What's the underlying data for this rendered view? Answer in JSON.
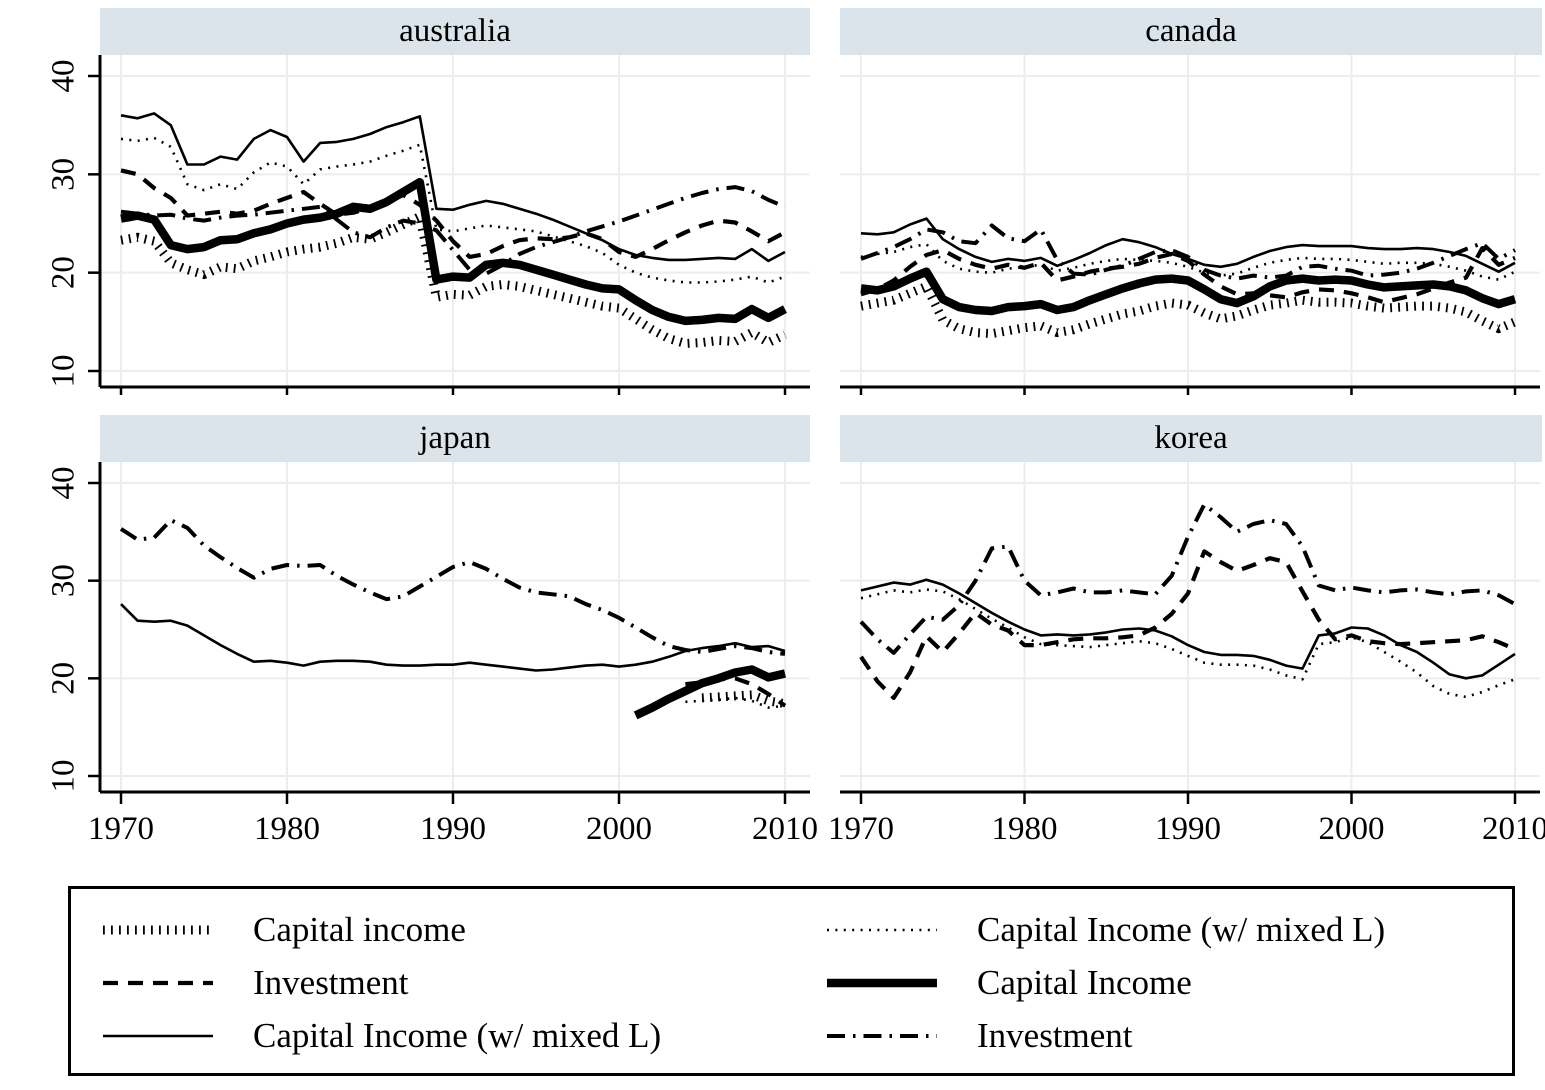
{
  "colors": {
    "background": "#ffffff",
    "band": "#dbe4ea",
    "grid": "#e8eef2",
    "line": "#000000"
  },
  "axes": {
    "y_ticks": [
      10,
      20,
      30,
      40
    ],
    "x_ticks": [
      1970,
      1980,
      1990,
      2000,
      2010
    ],
    "y_range": [
      8,
      42.5
    ],
    "x_range": [
      1969,
      2012
    ]
  },
  "line_styles": {
    "hatched": {
      "width": 9,
      "dash": "1.8 6.2"
    },
    "dashed": {
      "width": 4.2,
      "dash": "15 10"
    },
    "solid_thin": {
      "width": 2.6,
      "dash": ""
    },
    "dotted": {
      "width": 2.6,
      "dash": "2 6.4"
    },
    "solid_thick": {
      "width": 8.5,
      "dash": ""
    },
    "dashdot": {
      "width": 4,
      "dash": "18 8 2.5 8"
    }
  },
  "legend": {
    "columns": [
      {
        "items": [
          {
            "label": "Capital income",
            "style": "hatched"
          },
          {
            "label": "Investment",
            "style": "dashed"
          },
          {
            "label": "Capital Income (w/ mixed L)",
            "style": "solid_thin"
          }
        ]
      },
      {
        "items": [
          {
            "label": "Capital Income (w/ mixed L)",
            "style": "dotted"
          },
          {
            "label": "Capital Income",
            "style": "solid_thick"
          },
          {
            "label": "Investment",
            "style": "dashdot"
          }
        ]
      }
    ]
  },
  "chart_data": [
    {
      "type": "line",
      "title": "australia",
      "xlabel": "",
      "ylabel": "",
      "x_range": [
        1970,
        2010
      ],
      "series": [
        {
          "name": "Capital income",
          "style": "hatched",
          "start_year": 1970,
          "values": [
            23.3,
            23.6,
            23.2,
            21.0,
            20.3,
            19.8,
            20.6,
            20.4,
            21.2,
            21.6,
            22.1,
            22.4,
            22.6,
            23.0,
            23.6,
            23.4,
            24.1,
            24.9,
            25.7,
            17.5,
            17.8,
            17.7,
            18.6,
            18.8,
            18.6,
            18.2,
            17.8,
            17.4,
            17.0,
            16.6,
            16.4,
            15.3,
            14.2,
            13.3,
            12.8,
            12.9,
            13.1,
            13.0,
            13.9,
            12.9,
            13.7
          ]
        },
        {
          "name": "Capital Income (w/ mixed L)",
          "style": "dotted",
          "start_year": 1970,
          "values": [
            33.6,
            33.4,
            33.7,
            32.8,
            29.0,
            28.4,
            29.0,
            28.5,
            30.2,
            31.2,
            30.8,
            29.0,
            30.5,
            30.8,
            31.0,
            31.3,
            31.9,
            32.4,
            33.0,
            24.4,
            24.2,
            24.5,
            24.8,
            24.6,
            24.4,
            24.2,
            23.7,
            23.2,
            22.7,
            22.0,
            20.8,
            20.0,
            19.5,
            19.2,
            19.0,
            19.0,
            19.1,
            19.3,
            19.6,
            19.0,
            19.6
          ]
        },
        {
          "name": "Investment",
          "style": "dashed",
          "start_year": 1970,
          "values": [
            30.4,
            30.0,
            28.6,
            27.6,
            25.8,
            26.0,
            26.2,
            26.0,
            26.3,
            27.0,
            27.6,
            28.2,
            27.0,
            25.9,
            26.1,
            26.6,
            27.2,
            27.9,
            26.9,
            25.3,
            23.2,
            21.6,
            21.9,
            22.7,
            23.3,
            23.5,
            23.4,
            23.6,
            24.0,
            23.4,
            22.1,
            21.6,
            22.4,
            23.3,
            24.1,
            24.8,
            25.3,
            25.1,
            24.2,
            23.2,
            24.1
          ]
        },
        {
          "name": "Investment",
          "style": "dashdot",
          "start_year": 1970,
          "values": [
            26.2,
            26.0,
            25.8,
            25.9,
            25.5,
            25.3,
            25.6,
            25.8,
            25.9,
            26.1,
            26.3,
            26.5,
            26.7,
            25.4,
            24.1,
            23.6,
            24.6,
            25.3,
            25.0,
            24.3,
            22.3,
            20.3,
            19.9,
            20.8,
            21.9,
            22.6,
            23.1,
            23.6,
            24.2,
            24.7,
            25.2,
            25.8,
            26.4,
            27.0,
            27.6,
            28.1,
            28.5,
            28.7,
            28.3,
            27.4,
            26.7
          ]
        },
        {
          "name": "Capital Income (w/ mixed L)",
          "style": "solid_thin",
          "start_year": 1970,
          "values": [
            36.0,
            35.7,
            36.2,
            35.0,
            31.0,
            31.0,
            31.8,
            31.5,
            33.6,
            34.5,
            33.8,
            31.3,
            33.2,
            33.3,
            33.6,
            34.1,
            34.8,
            35.3,
            35.9,
            26.5,
            26.4,
            26.9,
            27.3,
            27.0,
            26.5,
            26.0,
            25.4,
            24.7,
            24.0,
            23.3,
            22.4,
            21.8,
            21.5,
            21.3,
            21.3,
            21.4,
            21.5,
            21.4,
            22.4,
            21.2,
            22.1
          ]
        },
        {
          "name": "Capital Income",
          "style": "solid_thick",
          "start_year": 1970,
          "values": [
            25.5,
            25.8,
            25.4,
            22.8,
            22.4,
            22.6,
            23.3,
            23.4,
            24.0,
            24.4,
            25.0,
            25.4,
            25.6,
            26.0,
            26.7,
            26.5,
            27.2,
            28.2,
            29.2,
            19.3,
            19.6,
            19.5,
            20.8,
            21.0,
            20.8,
            20.3,
            19.8,
            19.3,
            18.8,
            18.4,
            18.3,
            17.2,
            16.2,
            15.5,
            15.1,
            15.2,
            15.4,
            15.3,
            16.3,
            15.4,
            16.3
          ]
        }
      ]
    },
    {
      "type": "line",
      "title": "canada",
      "xlabel": "",
      "ylabel": "",
      "x_range": [
        1970,
        2010
      ],
      "series": [
        {
          "name": "Capital income",
          "style": "hatched",
          "start_year": 1970,
          "values": [
            16.6,
            16.9,
            17.2,
            17.9,
            18.6,
            15.2,
            14.3,
            13.9,
            13.8,
            14.1,
            14.4,
            14.6,
            13.9,
            14.2,
            14.8,
            15.3,
            15.8,
            16.1,
            16.6,
            16.9,
            16.7,
            15.9,
            15.3,
            15.6,
            16.2,
            16.7,
            16.9,
            17.2,
            17.0,
            17.0,
            16.9,
            16.6,
            16.4,
            16.5,
            16.6,
            16.6,
            16.4,
            16.0,
            15.1,
            14.3,
            15.0
          ]
        },
        {
          "name": "Capital Income (w/ mixed L)",
          "style": "dotted",
          "start_year": 1970,
          "values": [
            21.6,
            21.9,
            22.1,
            22.6,
            22.9,
            21.2,
            20.4,
            20.1,
            20.0,
            20.4,
            20.6,
            20.8,
            20.2,
            20.5,
            20.9,
            21.2,
            21.4,
            21.3,
            21.2,
            21.0,
            20.6,
            20.0,
            19.7,
            19.9,
            20.5,
            21.0,
            21.3,
            21.5,
            21.4,
            21.4,
            21.3,
            21.1,
            20.9,
            21.0,
            21.0,
            20.9,
            20.6,
            20.2,
            19.6,
            19.3,
            20.1
          ]
        },
        {
          "name": "Investment",
          "style": "dashed",
          "start_year": 1970,
          "values": [
            17.8,
            18.3,
            19.2,
            20.6,
            21.8,
            22.3,
            21.4,
            20.8,
            20.4,
            20.8,
            20.5,
            21.0,
            19.2,
            19.6,
            20.1,
            20.4,
            20.6,
            20.9,
            21.5,
            21.9,
            21.2,
            19.8,
            18.6,
            17.8,
            17.9,
            17.7,
            17.5,
            18.0,
            18.3,
            18.2,
            17.9,
            17.5,
            17.0,
            17.4,
            17.8,
            18.4,
            19.0,
            19.5,
            22.5,
            20.8,
            21.5
          ]
        },
        {
          "name": "Investment",
          "style": "dashdot",
          "start_year": 1970,
          "values": [
            21.4,
            22.0,
            22.6,
            23.4,
            24.4,
            24.1,
            23.2,
            23.0,
            24.8,
            23.5,
            23.2,
            24.4,
            21.3,
            19.9,
            19.8,
            20.3,
            20.7,
            21.4,
            22.1,
            22.3,
            21.6,
            20.3,
            19.7,
            19.4,
            19.7,
            19.5,
            19.7,
            20.6,
            20.7,
            20.4,
            20.2,
            19.7,
            19.8,
            20.0,
            20.4,
            21.0,
            21.7,
            22.4,
            23.0,
            21.4,
            22.3
          ]
        },
        {
          "name": "Capital Income (w/ mixed L)",
          "style": "solid_thin",
          "start_year": 1970,
          "values": [
            24.0,
            23.9,
            24.1,
            24.9,
            25.5,
            23.4,
            22.4,
            21.6,
            21.1,
            21.4,
            21.2,
            21.5,
            20.7,
            21.3,
            22.0,
            22.8,
            23.4,
            23.1,
            22.6,
            21.9,
            21.4,
            20.8,
            20.6,
            20.9,
            21.6,
            22.2,
            22.6,
            22.8,
            22.7,
            22.7,
            22.7,
            22.5,
            22.4,
            22.4,
            22.5,
            22.4,
            22.1,
            21.7,
            20.9,
            20.1,
            21.0
          ]
        },
        {
          "name": "Capital Income",
          "style": "solid_thick",
          "start_year": 1970,
          "values": [
            18.4,
            18.2,
            18.6,
            19.4,
            20.1,
            17.3,
            16.5,
            16.2,
            16.1,
            16.5,
            16.6,
            16.8,
            16.2,
            16.5,
            17.2,
            17.8,
            18.4,
            18.9,
            19.3,
            19.4,
            19.2,
            18.3,
            17.3,
            16.9,
            17.6,
            18.6,
            19.2,
            19.4,
            19.2,
            19.3,
            19.2,
            18.8,
            18.5,
            18.6,
            18.7,
            18.8,
            18.6,
            18.2,
            17.4,
            16.8,
            17.3
          ]
        }
      ]
    },
    {
      "type": "line",
      "title": "japan",
      "xlabel": "",
      "ylabel": "",
      "x_range": [
        1970,
        2010
      ],
      "series": [
        {
          "name": "Capital income",
          "style": "hatched",
          "start_year": 2005,
          "values": [
            18.0,
            18.1,
            18.2,
            18.3,
            17.7,
            17.4
          ]
        },
        {
          "name": "Capital Income (w/ mixed L)",
          "style": "dotted",
          "start_year": 2004,
          "values": [
            17.6,
            17.7,
            17.8,
            18.0,
            17.7,
            17.0,
            17.2
          ]
        },
        {
          "name": "Investment",
          "style": "dashed",
          "start_year": 2004,
          "values": [
            19.4,
            19.6,
            19.9,
            20.0,
            19.4,
            18.4,
            17.2
          ]
        },
        {
          "name": "Investment",
          "style": "dashdot",
          "start_year": 1970,
          "values": [
            35.3,
            34.2,
            34.4,
            36.2,
            35.4,
            33.6,
            32.4,
            31.3,
            30.3,
            31.2,
            31.6,
            31.5,
            31.6,
            30.5,
            29.6,
            28.8,
            28.1,
            28.4,
            29.4,
            30.4,
            31.4,
            31.9,
            31.2,
            30.2,
            29.3,
            28.8,
            28.6,
            28.4,
            27.6,
            27.0,
            26.2,
            25.2,
            24.2,
            23.3,
            22.9,
            22.7,
            23.0,
            23.3,
            23.1,
            22.7,
            22.5
          ]
        },
        {
          "name": "Capital Income (w/ mixed L)",
          "style": "solid_thin",
          "start_year": 1970,
          "values": [
            27.6,
            25.9,
            25.8,
            25.9,
            25.4,
            24.4,
            23.4,
            22.5,
            21.7,
            21.8,
            21.6,
            21.3,
            21.7,
            21.8,
            21.8,
            21.7,
            21.4,
            21.3,
            21.3,
            21.4,
            21.4,
            21.6,
            21.4,
            21.2,
            21.0,
            20.8,
            20.9,
            21.1,
            21.3,
            21.4,
            21.2,
            21.4,
            21.7,
            22.2,
            22.8,
            23.1,
            23.3,
            23.6,
            23.2,
            23.3,
            22.8
          ]
        },
        {
          "name": "Capital Income",
          "style": "solid_thick",
          "start_year": 2001,
          "values": [
            16.2,
            17.0,
            17.9,
            18.7,
            19.5,
            20.0,
            20.6,
            20.9,
            20.1,
            20.5
          ]
        }
      ]
    },
    {
      "type": "line",
      "title": "korea",
      "xlabel": "",
      "ylabel": "",
      "x_range": [
        1970,
        2010
      ],
      "series": [
        {
          "name": "Capital Income (w/ mixed L)",
          "style": "dotted",
          "start_year": 1970,
          "values": [
            28.2,
            28.6,
            29.0,
            28.8,
            29.1,
            28.9,
            28.1,
            27.1,
            26.1,
            25.2,
            24.2,
            23.5,
            23.4,
            23.3,
            23.2,
            23.4,
            23.6,
            23.8,
            23.6,
            23.0,
            22.3,
            21.6,
            21.4,
            21.4,
            21.3,
            20.9,
            20.3,
            19.9,
            23.5,
            23.7,
            24.2,
            23.7,
            22.7,
            21.7,
            20.6,
            19.2,
            18.4,
            18.1,
            18.6,
            19.3,
            19.9
          ]
        },
        {
          "name": "Investment",
          "style": "dashed",
          "start_year": 1970,
          "values": [
            22.2,
            19.7,
            18.0,
            20.6,
            24.3,
            22.7,
            24.6,
            26.7,
            25.5,
            24.9,
            23.4,
            23.4,
            23.7,
            24.0,
            24.1,
            24.1,
            24.2,
            24.4,
            25.2,
            26.6,
            28.7,
            33.0,
            31.9,
            31.0,
            31.6,
            32.3,
            31.9,
            28.9,
            26.0,
            24.0,
            24.4,
            23.8,
            23.6,
            23.5,
            23.6,
            23.7,
            23.8,
            23.9,
            24.3,
            23.7,
            23.0
          ]
        },
        {
          "name": "Investment",
          "style": "dashdot",
          "start_year": 1970,
          "values": [
            25.8,
            24.0,
            22.6,
            24.5,
            26.3,
            26.0,
            27.5,
            30.0,
            33.3,
            33.5,
            30.0,
            28.5,
            28.8,
            29.2,
            28.8,
            28.8,
            29.0,
            28.8,
            28.6,
            30.5,
            34.5,
            37.8,
            36.5,
            35.0,
            35.8,
            36.2,
            35.8,
            33.5,
            29.5,
            29.0,
            29.3,
            29.0,
            28.8,
            29.0,
            29.1,
            28.8,
            28.6,
            28.9,
            29.0,
            28.5,
            27.6
          ]
        },
        {
          "name": "Capital Income (w/ mixed L)",
          "style": "solid_thin",
          "start_year": 1970,
          "values": [
            29.0,
            29.4,
            29.8,
            29.6,
            30.1,
            29.6,
            28.7,
            27.7,
            26.7,
            25.8,
            25.0,
            24.4,
            24.5,
            24.4,
            24.5,
            24.7,
            25.0,
            25.1,
            24.9,
            24.3,
            23.4,
            22.7,
            22.4,
            22.4,
            22.3,
            21.9,
            21.3,
            21.0,
            24.4,
            24.6,
            25.2,
            25.1,
            24.4,
            23.4,
            22.7,
            21.6,
            20.4,
            20.0,
            20.3,
            21.4,
            22.5
          ]
        }
      ]
    }
  ]
}
